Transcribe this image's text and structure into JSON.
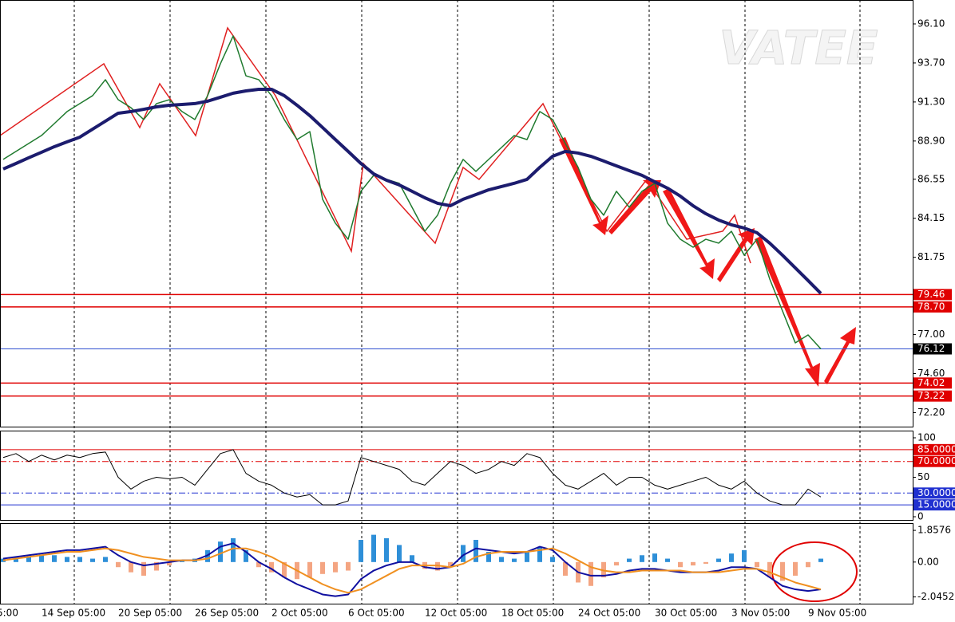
{
  "chart_data": [
    {
      "type": "line",
      "watermark": "VATEE",
      "ylim": [
        71.34,
        97.57
      ],
      "yticks": [
        {
          "value": 96.1,
          "label": "96.10"
        },
        {
          "value": 93.7,
          "label": "93.70"
        },
        {
          "value": 91.3,
          "label": "91.30"
        },
        {
          "value": 88.9,
          "label": "88.90"
        },
        86.55,
        84.15,
        81.75,
        {
          "value": 77,
          "label": "77.00"
        },
        {
          "value": 74.6,
          "label": "74.60"
        },
        {
          "value": 72.2,
          "label": "72.20"
        }
      ],
      "levels": [
        {
          "value": 79.46,
          "color": "#e00000"
        },
        {
          "value": 78.7,
          "label": "78.70",
          "color": "#e00000"
        },
        {
          "value": 76.12,
          "color": "#3050d0",
          "label_color": "#000000"
        },
        {
          "value": 74.02,
          "color": "#e00000"
        },
        {
          "value": 73.22,
          "color": "#e00000"
        }
      ],
      "series": [
        {
          "color": "#1f7a2e",
          "width": 1.5,
          "values": [
            87.77,
            88.26,
            88.75,
            89.24,
            89.97,
            90.71,
            91.2,
            91.69,
            92.67,
            91.44,
            90.95,
            90.22,
            91.2,
            91.44,
            90.71,
            90.22,
            91.69,
            93.65,
            95.36,
            92.91,
            92.67,
            91.69,
            90.22,
            88.99,
            89.48,
            85.32,
            83.85,
            82.86,
            85.81,
            86.79,
            86.54,
            86.3,
            84.83,
            83.35,
            84.34,
            86.3,
            87.77,
            87.03,
            87.77,
            88.5,
            89.24,
            88.99,
            90.71,
            90.22,
            88.75,
            87.28,
            85.32,
            84.34,
            85.81,
            84.83,
            85.81,
            86.3,
            83.85,
            82.86,
            82.37,
            82.86,
            82.62,
            83.35,
            81.88,
            82.86,
            80.41,
            78.45,
            76.49,
            76.98,
            76.12
          ]
        },
        {
          "color": "#1c1c6e",
          "width": 4,
          "values": [
            87.18,
            87.52,
            87.87,
            88.21,
            88.55,
            88.85,
            89.14,
            89.63,
            90.12,
            90.61,
            90.71,
            90.85,
            91.0,
            91.1,
            91.15,
            91.2,
            91.35,
            91.59,
            91.84,
            91.98,
            92.08,
            92.08,
            91.69,
            91.1,
            90.46,
            89.73,
            88.99,
            88.26,
            87.52,
            86.88,
            86.49,
            86.2,
            85.81,
            85.41,
            85.07,
            84.92,
            85.32,
            85.61,
            85.9,
            86.1,
            86.3,
            86.54,
            87.28,
            87.96,
            88.26,
            88.16,
            87.96,
            87.67,
            87.37,
            87.08,
            86.79,
            86.39,
            86.0,
            85.51,
            84.92,
            84.43,
            84.04,
            83.75,
            83.55,
            83.26,
            82.62,
            81.88,
            81.1,
            80.32,
            79.53
          ]
        }
      ]
    },
    {
      "type": "line",
      "ylim": [
        0,
        100
      ],
      "yticks": [
        100,
        {
          "value": 85,
          "label": "85.0000",
          "color": "#e00000"
        },
        {
          "value": 70,
          "label": "70.0000",
          "color": "#e00000",
          "dash": true
        },
        50,
        {
          "value": 30,
          "label": "30.0000",
          "color": "#2030d0",
          "dash": true
        },
        {
          "value": 15,
          "label": "15.0000",
          "color": "#2030d0"
        },
        0
      ],
      "series": [
        {
          "color": "#000000",
          "width": 1,
          "values": [
            75,
            80,
            70,
            78,
            72,
            78,
            75,
            80,
            82,
            50,
            35,
            45,
            50,
            48,
            50,
            40,
            60,
            80,
            85,
            55,
            45,
            40,
            30,
            25,
            28,
            15,
            15,
            20,
            75,
            70,
            65,
            60,
            45,
            40,
            55,
            70,
            65,
            55,
            60,
            70,
            65,
            80,
            75,
            55,
            40,
            35,
            45,
            55,
            40,
            50,
            50,
            40,
            35,
            40,
            45,
            50,
            40,
            35,
            45,
            30,
            20,
            15,
            15,
            35,
            25
          ]
        }
      ]
    },
    {
      "type": "bar",
      "ylim": [
        -2.44,
        2.33
      ],
      "yticks": [
        1.8576,
        {
          "value": 0,
          "label": "0.00"
        },
        -2.0452
      ],
      "edge_label": "5:00",
      "categories": [
        null,
        null,
        null,
        "14 Sep 05:00",
        null,
        null,
        null,
        null,
        null,
        "20 Sep 05:00",
        null,
        null,
        null,
        null,
        null,
        "26 Sep 05:00",
        null,
        null,
        null,
        null,
        null,
        "2 Oct 05:00",
        null,
        null,
        null,
        null,
        null,
        "6 Oct 05:00",
        null,
        null,
        null,
        null,
        null,
        "12 Oct 05:00",
        null,
        null,
        null,
        null,
        null,
        "18 Oct 05:00",
        null,
        null,
        null,
        null,
        null,
        "24 Oct 05:00",
        null,
        null,
        null,
        null,
        null,
        "30 Oct 05:00",
        null,
        null,
        null,
        null,
        null,
        "3 Nov 05:00",
        null,
        null,
        null,
        null,
        null,
        "9 Nov 05:00",
        null
      ],
      "color_up": "#2e8fd8",
      "color_down": "#f4a582",
      "values": [
        0.2,
        0.3,
        0.3,
        0.4,
        0.4,
        0.3,
        0.3,
        0.2,
        0.3,
        -0.3,
        -0.6,
        -0.8,
        -0.5,
        -0.2,
        0.1,
        0.2,
        0.7,
        1.2,
        1.4,
        0.7,
        -0.3,
        -0.6,
        -0.9,
        -1.0,
        -0.9,
        -0.7,
        -0.6,
        -0.5,
        1.3,
        1.6,
        1.4,
        1.0,
        0.4,
        -0.4,
        -0.5,
        -0.3,
        1.0,
        1.3,
        0.6,
        0.3,
        0.2,
        0.6,
        0.9,
        0.3,
        -0.8,
        -1.2,
        -1.4,
        -0.9,
        -0.2,
        0.2,
        0.4,
        0.5,
        0.2,
        -0.3,
        -0.2,
        -0.1,
        0.2,
        0.5,
        0.7,
        -0.3,
        -0.9,
        -1.1,
        -0.8,
        -0.3,
        0.2
      ],
      "series": [
        {
          "color": "#1010a0",
          "width": 2,
          "values": [
            0.2,
            0.3,
            0.4,
            0.5,
            0.6,
            0.7,
            0.7,
            0.8,
            0.9,
            0.4,
            0.0,
            -0.2,
            -0.1,
            0.0,
            0.1,
            0.1,
            0.4,
            0.9,
            1.1,
            0.6,
            0.0,
            -0.4,
            -0.9,
            -1.3,
            -1.6,
            -1.9,
            -2.0,
            -1.9,
            -1.0,
            -0.5,
            -0.2,
            0.0,
            0.0,
            -0.3,
            -0.4,
            -0.3,
            0.4,
            0.8,
            0.7,
            0.6,
            0.5,
            0.6,
            0.9,
            0.7,
            0.0,
            -0.6,
            -0.8,
            -0.8,
            -0.7,
            -0.5,
            -0.4,
            -0.4,
            -0.5,
            -0.6,
            -0.6,
            -0.6,
            -0.5,
            -0.3,
            -0.3,
            -0.4,
            -0.9,
            -1.4,
            -1.6,
            -1.7,
            -1.6
          ]
        },
        {
          "color": "#f09020",
          "width": 2,
          "values": [
            0.1,
            0.2,
            0.3,
            0.4,
            0.5,
            0.6,
            0.6,
            0.7,
            0.8,
            0.7,
            0.5,
            0.3,
            0.2,
            0.1,
            0.1,
            0.1,
            0.2,
            0.5,
            0.8,
            0.8,
            0.6,
            0.3,
            -0.1,
            -0.5,
            -0.9,
            -1.3,
            -1.6,
            -1.8,
            -1.6,
            -1.2,
            -0.8,
            -0.4,
            -0.2,
            -0.2,
            -0.2,
            -0.3,
            -0.1,
            0.3,
            0.5,
            0.6,
            0.6,
            0.6,
            0.7,
            0.8,
            0.5,
            0.1,
            -0.3,
            -0.5,
            -0.6,
            -0.6,
            -0.5,
            -0.5,
            -0.5,
            -0.5,
            -0.6,
            -0.6,
            -0.6,
            -0.5,
            -0.4,
            -0.4,
            -0.6,
            -0.9,
            -1.2,
            -1.4,
            -1.6
          ]
        }
      ]
    }
  ]
}
